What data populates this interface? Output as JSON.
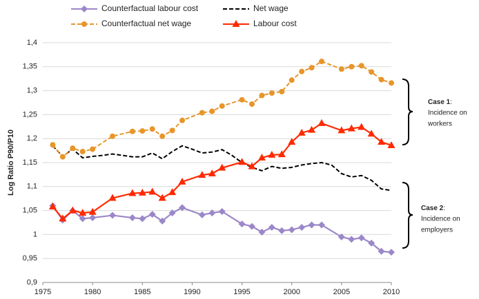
{
  "chart_data": {
    "type": "line",
    "y_label": "Log Ratio P90/P10",
    "xlim": [
      1975,
      2010
    ],
    "xticks": [
      1975,
      1980,
      1985,
      1990,
      1995,
      2000,
      2005,
      2010
    ],
    "ylim": [
      0.9,
      1.4
    ],
    "yticks": [
      {
        "value": 0.9,
        "label": "0,9"
      },
      {
        "value": 0.95,
        "label": "0,95"
      },
      {
        "value": 1,
        "label": "1"
      },
      {
        "value": 1.05,
        "label": "1,05"
      },
      {
        "value": 1.1,
        "label": "1,1"
      },
      {
        "value": 1.15,
        "label": "1,15"
      },
      {
        "value": 1.2,
        "label": "1,2"
      },
      {
        "value": 1.25,
        "label": "1,25"
      },
      {
        "value": 1.3,
        "label": "1,3"
      },
      {
        "value": 1.35,
        "label": "1,35"
      },
      {
        "value": 1.4,
        "label": "1,4"
      }
    ],
    "grid": true,
    "series": [
      {
        "name": "Counterfactual labour cost",
        "color": "#9b87c9",
        "marker": "diamond",
        "dash": false,
        "x": [
          1976,
          1977,
          1978,
          1979,
          1980,
          1982,
          1984,
          1985,
          1986,
          1987,
          1988,
          1989,
          1991,
          1992,
          1993,
          1995,
          1996,
          1997,
          1998,
          1999,
          2000,
          2001,
          2002,
          2003,
          2005,
          2006,
          2007,
          2008,
          2009,
          2010
        ],
        "values": [
          1.06,
          1.03,
          1.05,
          1.033,
          1.035,
          1.04,
          1.035,
          1.033,
          1.042,
          1.028,
          1.045,
          1.056,
          1.041,
          1.045,
          1.048,
          1.022,
          1.017,
          1.005,
          1.015,
          1.008,
          1.01,
          1.015,
          1.02,
          1.02,
          0.995,
          0.99,
          0.993,
          0.982,
          0.965,
          0.963
        ]
      },
      {
        "name": "Net wage",
        "color": "#000000",
        "marker": "none",
        "dash": true,
        "x": [
          1976,
          1977,
          1978,
          1979,
          1980,
          1981,
          1982,
          1983,
          1984,
          1985,
          1986,
          1987,
          1988,
          1989,
          1990,
          1991,
          1992,
          1993,
          1994,
          1995,
          1996,
          1997,
          1998,
          1999,
          2000,
          2001,
          2002,
          2003,
          2004,
          2005,
          2006,
          2007,
          2008,
          2009,
          2010
        ],
        "values": [
          1.185,
          1.163,
          1.178,
          1.16,
          1.163,
          1.165,
          1.168,
          1.165,
          1.162,
          1.162,
          1.17,
          1.158,
          1.173,
          1.185,
          1.178,
          1.17,
          1.172,
          1.177,
          1.165,
          1.15,
          1.14,
          1.133,
          1.142,
          1.138,
          1.14,
          1.145,
          1.148,
          1.15,
          1.145,
          1.127,
          1.12,
          1.123,
          1.113,
          1.095,
          1.092
        ]
      },
      {
        "name": "Counterfactual net wage",
        "color": "#e8952a",
        "marker": "circle",
        "dash": true,
        "x": [
          1976,
          1977,
          1978,
          1979,
          1980,
          1982,
          1984,
          1985,
          1986,
          1987,
          1988,
          1989,
          1991,
          1992,
          1993,
          1995,
          1996,
          1997,
          1998,
          1999,
          2000,
          2001,
          2002,
          2003,
          2005,
          2006,
          2007,
          2008,
          2009,
          2010
        ],
        "values": [
          1.187,
          1.162,
          1.18,
          1.173,
          1.178,
          1.205,
          1.215,
          1.216,
          1.22,
          1.205,
          1.217,
          1.238,
          1.254,
          1.257,
          1.268,
          1.281,
          1.272,
          1.29,
          1.295,
          1.298,
          1.322,
          1.34,
          1.348,
          1.361,
          1.345,
          1.35,
          1.352,
          1.339,
          1.323,
          1.316
        ]
      },
      {
        "name": "Labour cost",
        "color": "#ff2a00",
        "marker": "triangle",
        "dash": false,
        "x": [
          1976,
          1977,
          1978,
          1979,
          1980,
          1982,
          1984,
          1985,
          1986,
          1987,
          1988,
          1989,
          1991,
          1992,
          1993,
          1995,
          1996,
          1997,
          1998,
          1999,
          2000,
          2001,
          2002,
          2003,
          2005,
          2006,
          2007,
          2008,
          2009,
          2010
        ],
        "values": [
          1.058,
          1.033,
          1.05,
          1.045,
          1.047,
          1.076,
          1.086,
          1.087,
          1.089,
          1.076,
          1.088,
          1.11,
          1.124,
          1.127,
          1.139,
          1.151,
          1.142,
          1.16,
          1.166,
          1.167,
          1.193,
          1.212,
          1.218,
          1.232,
          1.217,
          1.221,
          1.224,
          1.21,
          1.193,
          1.186
        ]
      }
    ],
    "annotations": [
      {
        "label": "Case 1",
        "suffix": ":",
        "lines": [
          "Incidence on",
          "workers"
        ]
      },
      {
        "label": "Case 2",
        "suffix": ":",
        "lines": [
          "Incidence on",
          "employers"
        ]
      }
    ]
  }
}
